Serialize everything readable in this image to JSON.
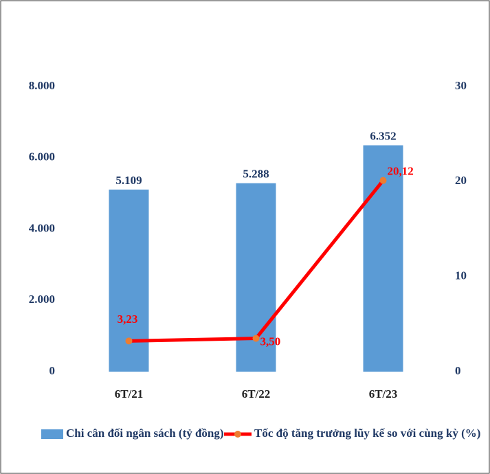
{
  "chart_data": {
    "type": "bar_line",
    "categories": [
      "6T/21",
      "6T/22",
      "6T/23"
    ],
    "series": [
      {
        "name": "Chi cân đối ngân sách (tỷ đồng)",
        "type": "bar",
        "color": "#5b9bd5",
        "values": [
          5109,
          5288,
          6352
        ],
        "value_labels": [
          "5.109",
          "5.288",
          "6.352"
        ]
      },
      {
        "name": "Tốc độ tăng trưởng lũy kế so với cùng kỳ (%)",
        "type": "line",
        "axis": "y2",
        "color": "#ff0000",
        "marker_color": "#ed7d31",
        "values": [
          3.23,
          3.5,
          20.12
        ],
        "value_labels": [
          "3,23",
          "3,50",
          "20,12"
        ]
      }
    ],
    "ylim": [
      0,
      8000
    ],
    "yticks": [
      0,
      {
        "value": 2000,
        "label": "2.000"
      },
      {
        "value": 4000,
        "label": "4.000"
      },
      {
        "value": 6000,
        "label": "6.000"
      },
      {
        "value": 8000,
        "label": "8.000"
      }
    ],
    "y2lim": [
      0,
      30
    ],
    "y2ticks": [
      0,
      10,
      20,
      30
    ],
    "legend": "bottom"
  }
}
